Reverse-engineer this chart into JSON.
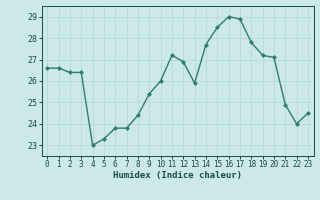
{
  "x": [
    0,
    1,
    2,
    3,
    4,
    5,
    6,
    7,
    8,
    9,
    10,
    11,
    12,
    13,
    14,
    15,
    16,
    17,
    18,
    19,
    20,
    21,
    22,
    23
  ],
  "y": [
    26.6,
    26.6,
    26.4,
    26.4,
    23.0,
    23.3,
    23.8,
    23.8,
    24.4,
    25.4,
    26.0,
    27.2,
    26.9,
    25.9,
    27.7,
    28.5,
    29.0,
    28.9,
    27.8,
    27.2,
    27.1,
    24.9,
    24.0,
    24.5
  ],
  "xlabel": "Humidex (Indice chaleur)",
  "line_color": "#2e7d6e",
  "marker": "D",
  "marker_size": 2.0,
  "bg_color": "#cce8e8",
  "grid_color": "#b8d8d8",
  "tick_color": "#1a4a4a",
  "xlim": [
    -0.5,
    23.5
  ],
  "ylim": [
    22.5,
    29.5
  ],
  "yticks": [
    23,
    24,
    25,
    26,
    27,
    28,
    29
  ],
  "xticks": [
    0,
    1,
    2,
    3,
    4,
    5,
    6,
    7,
    8,
    9,
    10,
    11,
    12,
    13,
    14,
    15,
    16,
    17,
    18,
    19,
    20,
    21,
    22,
    23
  ],
  "xlabel_fontsize": 6.5,
  "tick_fontsize": 5.5,
  "linewidth": 1.0
}
